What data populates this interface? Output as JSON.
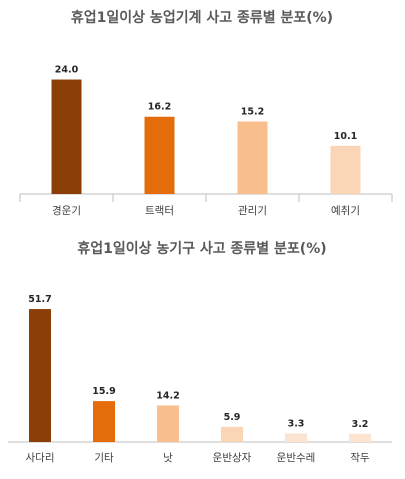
{
  "chart_data": [
    {
      "type": "bar",
      "title": "휴업1일이상 농업기계 사고 종류별 분포(%)",
      "categories": [
        "경운기",
        "트랙터",
        "관리기",
        "예취기"
      ],
      "values": [
        24.0,
        16.2,
        15.2,
        10.1
      ],
      "value_labels": [
        "24.0",
        "16.2",
        "15.2",
        "10.1"
      ],
      "colors": [
        "#8b3e07",
        "#e46c0a",
        "#f8be8c",
        "#fbd6b6"
      ],
      "ylim": [
        0,
        26
      ],
      "grid": false,
      "legend": "none"
    },
    {
      "type": "bar",
      "title": "휴업1일이상 농기구 사고 종류별 분포(%)",
      "categories": [
        "사다리",
        "기타",
        "낫",
        "운반상자",
        "운반수레",
        "작두"
      ],
      "values": [
        51.7,
        15.9,
        14.2,
        5.9,
        3.3,
        3.2
      ],
      "value_labels": [
        "51.7",
        "15.9",
        "14.2",
        "5.9",
        "3.3",
        "3.2"
      ],
      "colors": [
        "#8b3e07",
        "#e46c0a",
        "#f8be8c",
        "#fbd6b6",
        "#fde4d0",
        "#fde4d0"
      ],
      "ylim": [
        0,
        56
      ],
      "grid": false,
      "legend": "none"
    }
  ]
}
